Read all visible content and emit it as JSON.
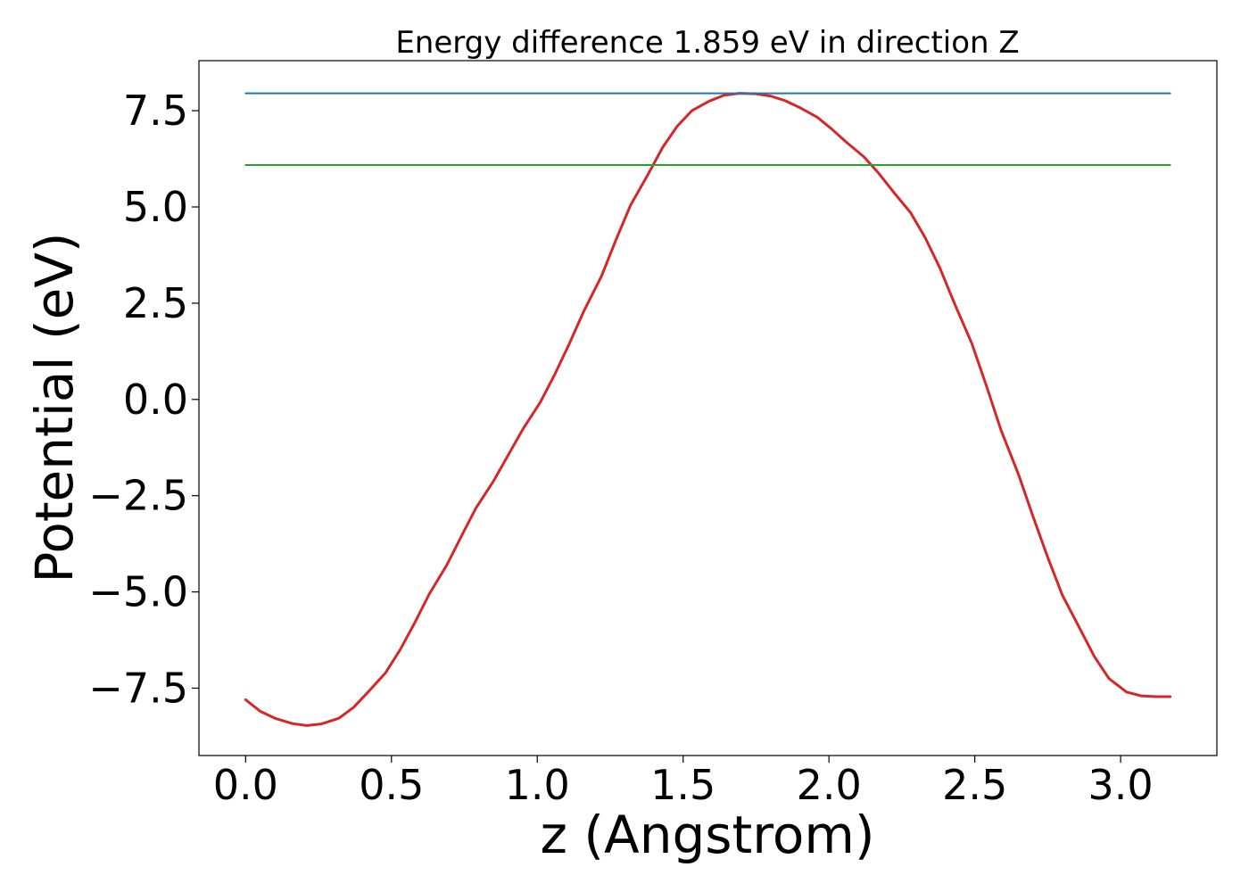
{
  "chart_data": {
    "type": "line",
    "title": "Energy difference 1.859 eV in direction Z",
    "xlabel": "z (Angstrom)",
    "ylabel": "Potential (eV)",
    "xlim": [
      -0.16,
      3.33
    ],
    "ylim": [
      -9.25,
      8.8
    ],
    "x_ticks": [
      0.0,
      0.5,
      1.0,
      1.5,
      2.0,
      2.5,
      3.0
    ],
    "x_tick_labels": [
      "0.0",
      "0.5",
      "1.0",
      "1.5",
      "2.0",
      "2.5",
      "3.0"
    ],
    "y_ticks": [
      -7.5,
      -5.0,
      -2.5,
      0.0,
      2.5,
      5.0,
      7.5
    ],
    "y_tick_labels": [
      "−7.5",
      "−5.0",
      "−2.5",
      "0.0",
      "2.5",
      "5.0",
      "7.5"
    ],
    "grid": false,
    "series": [
      {
        "color": "#d62728",
        "x": [
          0.0,
          0.05,
          0.1,
          0.16,
          0.21,
          0.26,
          0.32,
          0.37,
          0.42,
          0.48,
          0.53,
          0.58,
          0.63,
          0.69,
          0.74,
          0.79,
          0.85,
          0.9,
          0.95,
          1.01,
          1.06,
          1.11,
          1.16,
          1.22,
          1.27,
          1.32,
          1.38,
          1.43,
          1.48,
          1.53,
          1.59,
          1.64,
          1.69,
          1.75,
          1.8,
          1.85,
          1.9,
          1.96,
          2.01,
          2.06,
          2.12,
          2.17,
          2.22,
          2.28,
          2.33,
          2.38,
          2.43,
          2.49,
          2.54,
          2.59,
          2.65,
          2.7,
          2.75,
          2.8,
          2.86,
          2.91,
          2.96,
          3.02,
          3.07,
          3.12,
          3.17
        ],
        "y": [
          -7.8,
          -8.1,
          -8.28,
          -8.42,
          -8.47,
          -8.43,
          -8.28,
          -8.0,
          -7.6,
          -7.1,
          -6.5,
          -5.8,
          -5.05,
          -4.3,
          -3.55,
          -2.82,
          -2.12,
          -1.45,
          -0.78,
          -0.08,
          0.65,
          1.45,
          2.3,
          3.2,
          4.15,
          5.05,
          5.85,
          6.55,
          7.1,
          7.5,
          7.75,
          7.9,
          7.95,
          7.94,
          7.88,
          7.76,
          7.58,
          7.33,
          7.02,
          6.68,
          6.3,
          5.88,
          5.4,
          4.85,
          4.2,
          3.42,
          2.5,
          1.45,
          0.35,
          -0.8,
          -1.95,
          -3.05,
          -4.1,
          -5.08,
          -5.95,
          -6.68,
          -7.25,
          -7.6,
          -7.7,
          -7.72,
          -7.72
        ]
      },
      {
        "color": "#1f77b4",
        "x": [
          0.0,
          3.17
        ],
        "y": [
          7.95,
          7.95
        ]
      },
      {
        "color": "#2ca02c",
        "x": [
          0.0,
          3.17
        ],
        "y": [
          6.09,
          6.09
        ]
      }
    ]
  }
}
